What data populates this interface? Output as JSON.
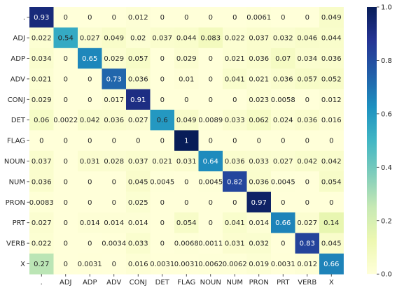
{
  "chart_data": {
    "type": "heatmap",
    "title": "",
    "xlabel": "",
    "ylabel": "",
    "row_labels": [
      ".",
      "ADJ",
      "ADP",
      "ADV",
      "CONJ",
      "DET",
      "FLAG",
      "NOUN",
      "NUM",
      "PRON",
      "PRT",
      "VERB",
      "X"
    ],
    "col_labels": [
      ".",
      "ADJ",
      "ADP",
      "ADV",
      "CONJ",
      "DET",
      "FLAG",
      "NOUN",
      "NUM",
      "PRON",
      "PRT",
      "VERB",
      "X"
    ],
    "values": [
      [
        0.93,
        0,
        0,
        0,
        0.012,
        0,
        0,
        0,
        0,
        0.0061,
        0,
        0,
        0.049
      ],
      [
        0.022,
        0.54,
        0.027,
        0.049,
        0.02,
        0.037,
        0.044,
        0.083,
        0.022,
        0.037,
        0.032,
        0.046,
        0.044
      ],
      [
        0.034,
        0,
        0.65,
        0.029,
        0.057,
        0,
        0.029,
        0,
        0.021,
        0.036,
        0.07,
        0.034,
        0.036
      ],
      [
        0.021,
        0,
        0,
        0.73,
        0.036,
        0,
        0.01,
        0,
        0.041,
        0.021,
        0.036,
        0.057,
        0.052
      ],
      [
        0.029,
        0,
        0,
        0.017,
        0.91,
        0,
        0,
        0,
        0,
        0.023,
        0.0058,
        0,
        0.012
      ],
      [
        0.06,
        0.0022,
        0.042,
        0.036,
        0.027,
        0.6,
        0.049,
        0.0089,
        0.033,
        0.062,
        0.024,
        0.036,
        0.016
      ],
      [
        0,
        0,
        0,
        0,
        0,
        0,
        1,
        0,
        0,
        0,
        0,
        0,
        0
      ],
      [
        0.037,
        0,
        0.031,
        0.028,
        0.037,
        0.021,
        0.031,
        0.64,
        0.036,
        0.033,
        0.027,
        0.042,
        0.042
      ],
      [
        0.036,
        0,
        0,
        0,
        0.045,
        0.0045,
        0,
        0.0045,
        0.82,
        0.036,
        0.0045,
        0,
        0.054
      ],
      [
        0.0083,
        0,
        0,
        0,
        0.025,
        0,
        0,
        0,
        0,
        0.97,
        0,
        0,
        0
      ],
      [
        0.027,
        0,
        0.014,
        0.014,
        0.014,
        0,
        0.054,
        0,
        0.041,
        0.014,
        0.66,
        0.027,
        0.14
      ],
      [
        0.022,
        0,
        0,
        0.0034,
        0.033,
        0,
        0.0068,
        0.0011,
        0.031,
        0.032,
        0,
        0.83,
        0.045
      ],
      [
        0.27,
        0,
        0.0031,
        0,
        0.016,
        0.0031,
        0.0031,
        0.0062,
        0.0062,
        0.019,
        0.0031,
        0.012,
        0.66
      ]
    ],
    "value_range": [
      0,
      1
    ],
    "colormap": "YlGnBu",
    "colorbar_ticks": [
      "0.0",
      "0.2",
      "0.4",
      "0.6",
      "0.8",
      "1.0"
    ],
    "colorbar_tick_values": [
      0,
      0.2,
      0.4,
      0.6,
      0.8,
      1.0
    ],
    "annotations": true,
    "grid": false
  }
}
